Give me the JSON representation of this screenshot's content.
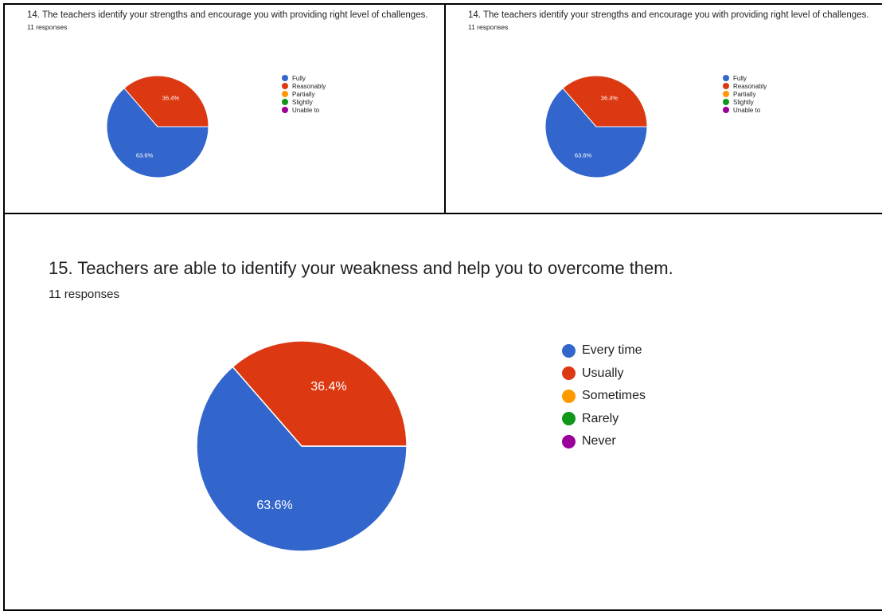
{
  "chart_data": [
    {
      "type": "pie",
      "title": "14. The teachers identify your strengths and encourage you with providing right level of challenges.",
      "subtitle": "11 responses",
      "categories": [
        "Fully",
        "Reasonably",
        "Partially",
        "Slightly",
        "Unable to"
      ],
      "values": [
        63.6,
        36.4,
        0,
        0,
        0
      ],
      "data_labels": [
        "63.6%",
        "36.4%",
        "",
        "",
        ""
      ],
      "colors": [
        "#3366cc",
        "#dc3912",
        "#ff9900",
        "#109618",
        "#990099"
      ],
      "legend": "right"
    },
    {
      "type": "pie",
      "title": "14. The teachers identify your strengths and encourage you with providing right level of challenges.",
      "subtitle": "11 responses",
      "categories": [
        "Fully",
        "Reasonably",
        "Partially",
        "Slightly",
        "Unable to"
      ],
      "values": [
        63.6,
        36.4,
        0,
        0,
        0
      ],
      "data_labels": [
        "63.6%",
        "36.4%",
        "",
        "",
        ""
      ],
      "colors": [
        "#3366cc",
        "#dc3912",
        "#ff9900",
        "#109618",
        "#990099"
      ],
      "legend": "right"
    },
    {
      "type": "pie",
      "title": "15. Teachers are able to identify your weakness and help you to overcome them.",
      "subtitle": "11 responses",
      "categories": [
        "Every time",
        "Usually",
        "Sometimes",
        "Rarely",
        "Never"
      ],
      "values": [
        63.6,
        36.4,
        0,
        0,
        0
      ],
      "data_labels": [
        "63.6%",
        "36.4%",
        "",
        "",
        ""
      ],
      "colors": [
        "#3366cc",
        "#dc3912",
        "#ff9900",
        "#109618",
        "#990099"
      ],
      "legend": "right"
    }
  ]
}
